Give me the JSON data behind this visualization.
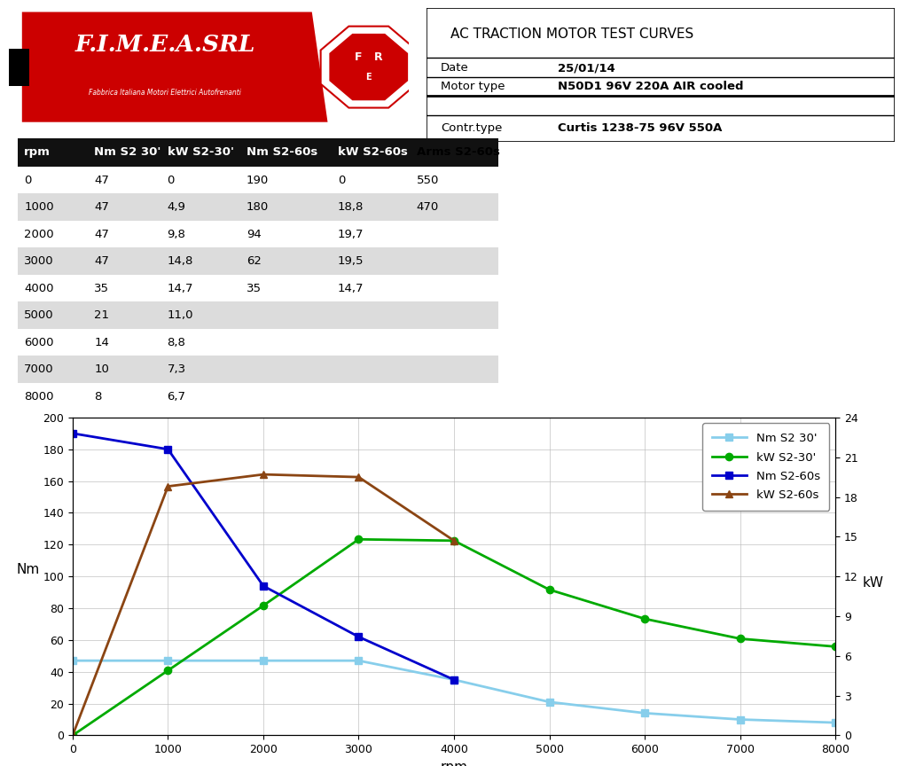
{
  "title": "AC TRACTION MOTOR TEST CURVES",
  "date_label": "Date",
  "date_value": "25/01/14",
  "motor_label": "Motor type",
  "motor_value": "N50D1 96V 220A AIR cooled",
  "contr_label": "Contr.type",
  "contr_value": "Curtis 1238-75 96V 550A",
  "table_headers": [
    "rpm",
    "Nm S2 30'",
    "kW S2-30'",
    "Nm S2-60s",
    "kW S2-60s",
    "Arms S2-60s"
  ],
  "table_data": [
    [
      0,
      47,
      "0",
      190,
      "0",
      550
    ],
    [
      1000,
      47,
      "4,9",
      180,
      "18,8",
      470
    ],
    [
      2000,
      47,
      "9,8",
      94,
      "19,7",
      null
    ],
    [
      3000,
      47,
      "14,8",
      62,
      "19,5",
      null
    ],
    [
      4000,
      35,
      "14,7",
      35,
      "14,7",
      null
    ],
    [
      5000,
      21,
      "11,0",
      null,
      null,
      null
    ],
    [
      6000,
      14,
      "8,8",
      null,
      null,
      null
    ],
    [
      7000,
      10,
      "7,3",
      null,
      null,
      null
    ],
    [
      8000,
      8,
      "6,7",
      null,
      null,
      null
    ]
  ],
  "rpm": [
    0,
    1000,
    2000,
    3000,
    4000,
    5000,
    6000,
    7000,
    8000
  ],
  "nm_s2_30": [
    47,
    47,
    47,
    47,
    35,
    21,
    14,
    10,
    8
  ],
  "kw_s2_30": [
    0,
    4.9,
    9.8,
    14.8,
    14.7,
    11.0,
    8.8,
    7.3,
    6.7
  ],
  "rpm_s2_60": [
    0,
    1000,
    2000,
    3000,
    4000
  ],
  "nm_s2_60": [
    190,
    180,
    94,
    62,
    35
  ],
  "kw_s2_60": [
    0,
    18.8,
    19.7,
    19.5,
    14.7
  ],
  "color_nm30": "#87CEEB",
  "color_kw30": "#00AA00",
  "color_nm60": "#0000CC",
  "color_kw60": "#8B4513",
  "y_left_max": 200,
  "y_left_ticks": [
    0,
    20,
    40,
    60,
    80,
    100,
    120,
    140,
    160,
    180,
    200
  ],
  "y_right_max": 24,
  "y_right_ticks": [
    0,
    3,
    6,
    9,
    12,
    15,
    18,
    21,
    24
  ],
  "x_ticks": [
    0,
    1000,
    2000,
    3000,
    4000,
    5000,
    6000,
    7000,
    8000
  ],
  "xlabel": "rpm",
  "ylabel_left": "Nm",
  "ylabel_right": "kW",
  "legend_labels": [
    "Nm S2 30'",
    "kW S2-30'",
    "Nm S2-60s",
    "kW S2-60s"
  ],
  "bg_color": "#FFFFFF",
  "table_alt_color": "#DCDCDC",
  "table_header_bg": "#111111",
  "table_header_fg": "#FFFFFF",
  "logo_bg": "#000000",
  "logo_red": "#CC0000",
  "logo_text": "F.I.M.E.A.SRL",
  "logo_subtext": "Fabbrica Italiana Motori Elettrici Autofrenanti"
}
